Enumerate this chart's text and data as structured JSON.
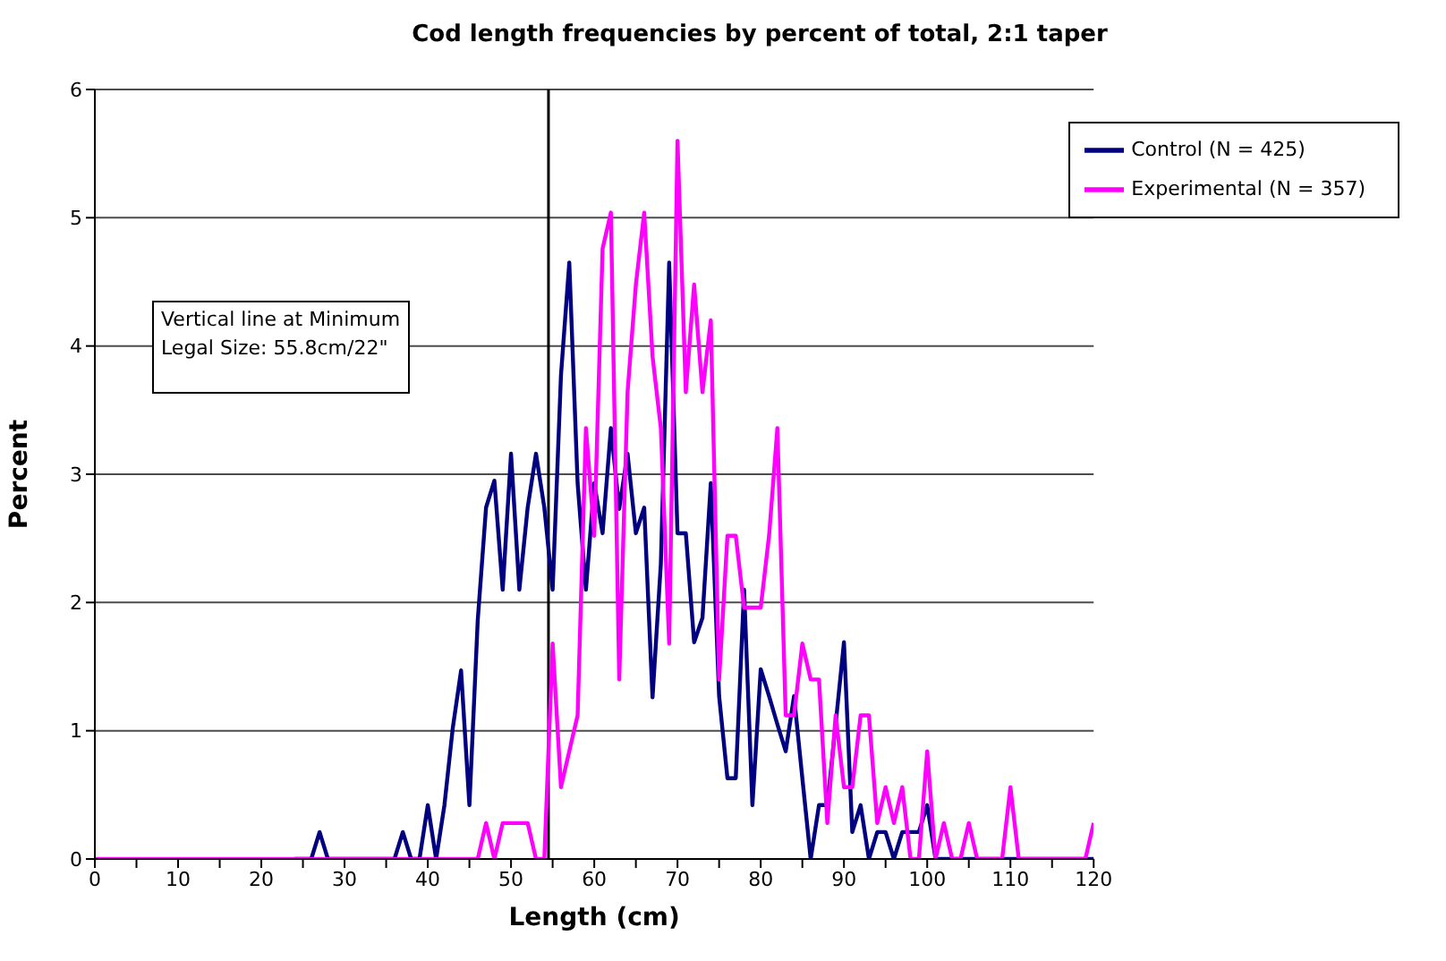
{
  "chart_data": {
    "type": "line",
    "title": "Cod length frequencies by percent of total, 2:1 taper",
    "xlabel": "Length (cm)",
    "ylabel": "Percent",
    "x": [
      0,
      1,
      2,
      3,
      4,
      5,
      6,
      7,
      8,
      9,
      10,
      11,
      12,
      13,
      14,
      15,
      16,
      17,
      18,
      19,
      20,
      21,
      22,
      23,
      24,
      25,
      26,
      27,
      28,
      29,
      30,
      31,
      32,
      33,
      34,
      35,
      36,
      37,
      38,
      39,
      40,
      41,
      42,
      43,
      44,
      45,
      46,
      47,
      48,
      49,
      50,
      51,
      52,
      53,
      54,
      55,
      56,
      57,
      58,
      59,
      60,
      61,
      62,
      63,
      64,
      65,
      66,
      67,
      68,
      69,
      70,
      71,
      72,
      73,
      74,
      75,
      76,
      77,
      78,
      79,
      80,
      81,
      82,
      83,
      84,
      85,
      86,
      87,
      88,
      89,
      90,
      91,
      92,
      93,
      94,
      95,
      96,
      97,
      98,
      99,
      100,
      101,
      102,
      103,
      104,
      105,
      106,
      107,
      108,
      109,
      110,
      111,
      112,
      113,
      114,
      115,
      116,
      117,
      118,
      119,
      120
    ],
    "series": [
      {
        "name": "Control (N = 425)",
        "color": "#000080",
        "values": [
          null,
          null,
          null,
          null,
          null,
          null,
          null,
          null,
          null,
          null,
          null,
          null,
          null,
          null,
          null,
          null,
          null,
          null,
          null,
          null,
          null,
          null,
          null,
          null,
          0,
          0,
          0,
          0.21,
          0,
          0,
          0,
          0,
          0,
          0,
          0,
          0,
          0,
          0.21,
          0,
          0,
          0.42,
          0,
          0.42,
          1.02,
          1.47,
          0.42,
          1.86,
          2.74,
          2.95,
          2.1,
          3.16,
          2.1,
          2.74,
          3.16,
          2.74,
          2.1,
          3.77,
          4.65,
          2.93,
          2.1,
          2.93,
          2.54,
          3.36,
          2.73,
          3.16,
          2.54,
          2.74,
          1.26,
          2.3,
          4.65,
          2.54,
          2.54,
          1.69,
          1.88,
          2.93,
          1.27,
          0.63,
          0.63,
          2.1,
          0.42,
          1.48,
          1.27,
          1.05,
          0.84,
          1.27,
          0.63,
          0,
          0.42,
          0.42,
          1.05,
          1.69,
          0.21,
          0.42,
          0,
          0.21,
          0.21,
          0,
          0.21,
          0.21,
          0.21,
          0.42,
          0,
          0,
          0,
          0,
          0,
          0,
          0,
          0,
          0,
          0,
          0,
          0,
          0,
          0,
          0,
          0,
          0,
          0,
          0,
          0
        ]
      },
      {
        "name": "Experimental (N = 357)",
        "color": "#ff00ff",
        "values": [
          0,
          0,
          0,
          0,
          0,
          0,
          0,
          0,
          0,
          0,
          0,
          0,
          0,
          0,
          0,
          0,
          0,
          0,
          0,
          0,
          0,
          0,
          0,
          0,
          0,
          0,
          0,
          0,
          0,
          0,
          0,
          0,
          0,
          0,
          0,
          0,
          0,
          0,
          0,
          0,
          0,
          0,
          0,
          0,
          0,
          0,
          0,
          0.28,
          0,
          0.28,
          0.28,
          0.28,
          0.28,
          0,
          0,
          1.68,
          0.56,
          0.84,
          1.12,
          3.36,
          2.52,
          4.76,
          5.04,
          1.4,
          3.64,
          4.48,
          5.04,
          3.92,
          3.36,
          1.68,
          5.6,
          3.64,
          4.48,
          3.64,
          4.2,
          1.4,
          2.52,
          2.52,
          1.96,
          1.96,
          1.96,
          2.52,
          3.36,
          1.12,
          1.12,
          1.68,
          1.4,
          1.4,
          0.28,
          1.12,
          0.56,
          0.56,
          1.12,
          1.12,
          0.28,
          0.56,
          0.28,
          0.56,
          0,
          0,
          0.84,
          0,
          0.28,
          0,
          0,
          0.28,
          0,
          0,
          0,
          0,
          0.56,
          0,
          0,
          0,
          0,
          0,
          0,
          0,
          0,
          0,
          0.28
        ]
      }
    ],
    "xlim": [
      0,
      120
    ],
    "xticks": [
      0,
      {
        "value": 5,
        "label": null
      },
      10,
      {
        "value": 15,
        "label": null
      },
      20,
      {
        "value": 25,
        "label": null
      },
      30,
      {
        "value": 35,
        "label": null
      },
      40,
      {
        "value": 45,
        "label": null
      },
      50,
      {
        "value": 55,
        "label": null
      },
      60,
      {
        "value": 65,
        "label": null
      },
      70,
      {
        "value": 75,
        "label": null
      },
      80,
      {
        "value": 85,
        "label": null
      },
      90,
      {
        "value": 95,
        "label": null
      },
      100,
      {
        "value": 105,
        "label": null
      },
      110,
      {
        "value": 115,
        "label": null
      },
      120
    ],
    "ylim": [
      0,
      6
    ],
    "yticks": [
      0,
      1,
      2,
      3,
      4,
      5,
      6
    ],
    "grid": "y",
    "legend": "top right",
    "marker": "none",
    "line_style": "solid",
    "ref_lines": [
      {
        "axis": "x",
        "value": 54.5,
        "color": "#000000"
      }
    ],
    "annotations": [
      "Vertical line at Minimum\nLegal Size: 55.8cm/22\""
    ]
  }
}
